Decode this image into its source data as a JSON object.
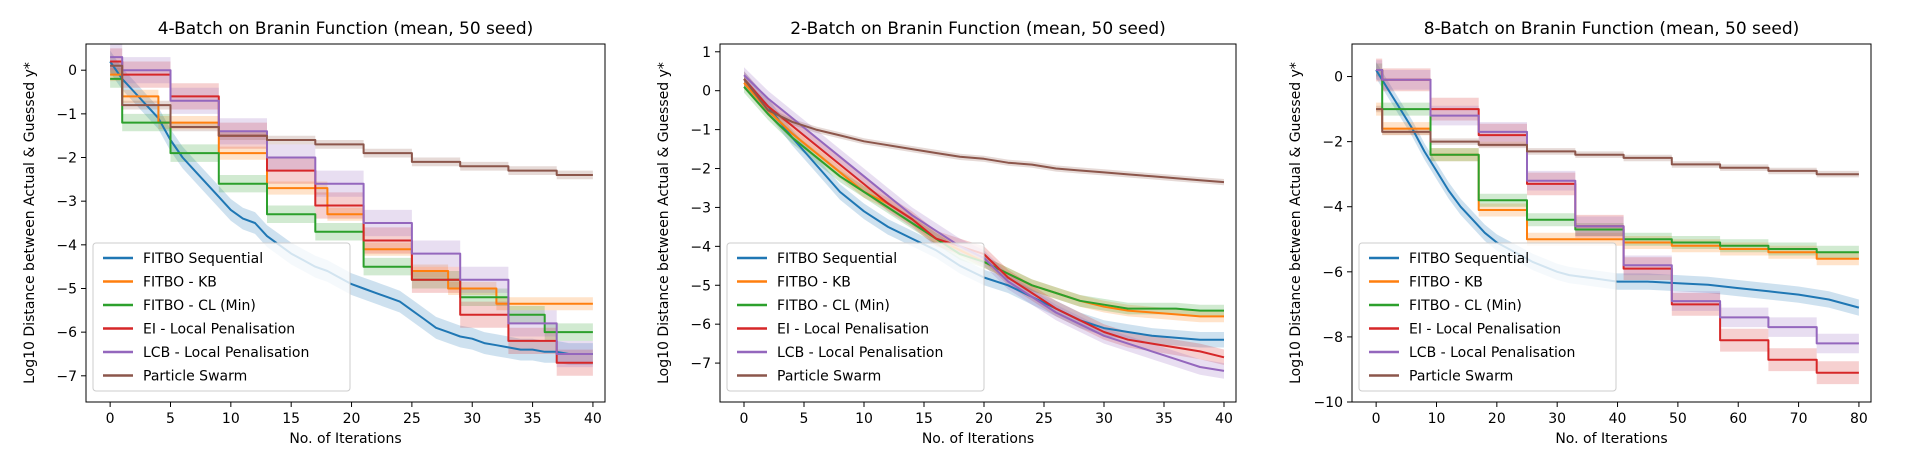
{
  "legend_labels": [
    "FITBO Sequential",
    "FITBO - KB",
    "FITBO - CL (Min)",
    "EI - Local Penalisation",
    "LCB - Local Penalisation",
    "Particle Swarm"
  ],
  "colors": {
    "FITBO Sequential": "#1f77b4",
    "FITBO - KB": "#ff7f0e",
    "FITBO - CL (Min)": "#2ca02c",
    "EI - Local Penalisation": "#d62728",
    "LCB - Local Penalisation": "#9467bd",
    "Particle Swarm": "#8c564b"
  },
  "chart_data": [
    {
      "type": "line",
      "title": "4-Batch on Branin Function (mean, 50 seed)",
      "xlabel": "No. of Iterations",
      "ylabel": "Log10 Distance between Actual & Guessed y*",
      "xlim": [
        -2,
        41
      ],
      "ylim": [
        -7.6,
        0.6
      ],
      "xticks": [
        0,
        5,
        10,
        15,
        20,
        25,
        30,
        35,
        40
      ],
      "yticks": [
        0,
        -1,
        -2,
        -3,
        -4,
        -5,
        -6,
        -7
      ],
      "legend_position": "lower-left",
      "grid": false,
      "series": [
        {
          "name": "FITBO Sequential",
          "step": false,
          "band": 0.25,
          "x": [
            0,
            1,
            2,
            3,
            4,
            5,
            6,
            7,
            8,
            9,
            10,
            11,
            12,
            13,
            14,
            15,
            16,
            17,
            18,
            19,
            20,
            21,
            22,
            23,
            24,
            25,
            26,
            27,
            28,
            29,
            30,
            31,
            32,
            33,
            34,
            35,
            36,
            37,
            38,
            39,
            40
          ],
          "y": [
            0.2,
            -0.2,
            -0.5,
            -0.8,
            -1.1,
            -1.6,
            -2.0,
            -2.3,
            -2.6,
            -2.9,
            -3.2,
            -3.4,
            -3.5,
            -3.8,
            -4.0,
            -4.2,
            -4.35,
            -4.5,
            -4.6,
            -4.75,
            -4.9,
            -5.0,
            -5.1,
            -5.2,
            -5.3,
            -5.5,
            -5.7,
            -5.9,
            -6.0,
            -6.1,
            -6.15,
            -6.25,
            -6.3,
            -6.35,
            -6.4,
            -6.4,
            -6.45,
            -6.45,
            -6.5,
            -6.5,
            -6.5
          ]
        },
        {
          "name": "FITBO - KB",
          "step": true,
          "band": 0.15,
          "x": [
            0,
            1,
            4,
            9,
            13,
            18,
            21,
            25,
            28,
            32,
            40
          ],
          "y": [
            -0.1,
            -0.6,
            -1.2,
            -1.9,
            -2.7,
            -3.3,
            -4.1,
            -4.6,
            -5.0,
            -5.35,
            -5.35
          ]
        },
        {
          "name": "FITBO - CL (Min)",
          "step": true,
          "band": 0.2,
          "x": [
            0,
            1,
            5,
            9,
            13,
            17,
            21,
            25,
            29,
            33,
            36,
            40
          ],
          "y": [
            -0.2,
            -1.2,
            -1.9,
            -2.6,
            -3.3,
            -3.7,
            -4.5,
            -4.8,
            -5.2,
            -5.6,
            -6.0,
            -6.0
          ]
        },
        {
          "name": "EI - Local Penalisation",
          "step": true,
          "band": 0.3,
          "x": [
            0,
            1,
            5,
            9,
            13,
            17,
            21,
            25,
            29,
            33,
            37,
            40
          ],
          "y": [
            0.2,
            -0.1,
            -0.6,
            -1.5,
            -2.3,
            -3.1,
            -3.9,
            -4.8,
            -5.6,
            -6.2,
            -6.7,
            -6.7
          ]
        },
        {
          "name": "LCB - Local Penalisation",
          "step": true,
          "band": 0.3,
          "x": [
            0,
            1,
            5,
            9,
            13,
            17,
            21,
            25,
            29,
            33,
            37,
            40
          ],
          "y": [
            0.3,
            0.0,
            -0.7,
            -1.4,
            -2.0,
            -2.6,
            -3.5,
            -4.2,
            -4.8,
            -5.8,
            -6.5,
            -6.5
          ]
        },
        {
          "name": "Particle Swarm",
          "step": true,
          "band": 0.1,
          "x": [
            0,
            1,
            5,
            9,
            13,
            17,
            21,
            25,
            29,
            33,
            37,
            40
          ],
          "y": [
            0.1,
            -0.8,
            -1.3,
            -1.5,
            -1.6,
            -1.7,
            -1.9,
            -2.1,
            -2.2,
            -2.3,
            -2.4,
            -2.4
          ]
        }
      ]
    },
    {
      "type": "line",
      "title": "2-Batch on Branin Function (mean, 50 seed)",
      "xlabel": "No. of Iterations",
      "ylabel": "Log10 Distance between Actual & Guessed y*",
      "xlim": [
        -2,
        41
      ],
      "ylim": [
        -8.0,
        1.2
      ],
      "xticks": [
        0,
        5,
        10,
        15,
        20,
        25,
        30,
        35,
        40
      ],
      "yticks": [
        1,
        0,
        -1,
        -2,
        -3,
        -4,
        -5,
        -6,
        -7
      ],
      "legend_position": "lower-left",
      "grid": false,
      "series": [
        {
          "name": "FITBO Sequential",
          "step": false,
          "band": 0.2,
          "x": [
            0,
            2,
            4,
            6,
            8,
            10,
            12,
            14,
            16,
            18,
            20,
            22,
            24,
            26,
            28,
            30,
            32,
            34,
            36,
            38,
            40
          ],
          "y": [
            0.3,
            -0.4,
            -1.2,
            -1.9,
            -2.6,
            -3.1,
            -3.5,
            -3.8,
            -4.1,
            -4.5,
            -4.8,
            -5.0,
            -5.3,
            -5.6,
            -5.9,
            -6.1,
            -6.2,
            -6.3,
            -6.35,
            -6.4,
            -6.4
          ]
        },
        {
          "name": "FITBO - KB",
          "step": false,
          "band": 0.15,
          "x": [
            0,
            2,
            4,
            6,
            8,
            10,
            12,
            14,
            16,
            18,
            20,
            22,
            24,
            26,
            28,
            30,
            32,
            34,
            36,
            38,
            40
          ],
          "y": [
            0.2,
            -0.5,
            -1.1,
            -1.6,
            -2.1,
            -2.6,
            -2.9,
            -3.3,
            -3.8,
            -4.1,
            -4.4,
            -4.7,
            -5.0,
            -5.2,
            -5.4,
            -5.55,
            -5.65,
            -5.7,
            -5.75,
            -5.8,
            -5.8
          ]
        },
        {
          "name": "FITBO - CL (Min)",
          "step": false,
          "band": 0.15,
          "x": [
            0,
            2,
            4,
            6,
            8,
            10,
            12,
            14,
            16,
            18,
            20,
            22,
            24,
            26,
            28,
            30,
            32,
            34,
            36,
            38,
            40
          ],
          "y": [
            0.1,
            -0.6,
            -1.2,
            -1.7,
            -2.2,
            -2.6,
            -3.0,
            -3.4,
            -3.8,
            -4.2,
            -4.4,
            -4.7,
            -5.0,
            -5.2,
            -5.4,
            -5.5,
            -5.6,
            -5.6,
            -5.6,
            -5.65,
            -5.65
          ]
        },
        {
          "name": "EI - Local Penalisation",
          "step": false,
          "band": 0.2,
          "x": [
            0,
            2,
            4,
            6,
            8,
            10,
            12,
            14,
            16,
            18,
            20,
            22,
            24,
            26,
            28,
            30,
            32,
            34,
            36,
            38,
            40
          ],
          "y": [
            0.3,
            -0.4,
            -0.9,
            -1.4,
            -1.9,
            -2.4,
            -2.9,
            -3.3,
            -3.8,
            -4.0,
            -4.2,
            -4.8,
            -5.2,
            -5.6,
            -5.9,
            -6.2,
            -6.4,
            -6.5,
            -6.6,
            -6.7,
            -6.85
          ]
        },
        {
          "name": "LCB - Local Penalisation",
          "step": false,
          "band": 0.2,
          "x": [
            0,
            2,
            4,
            6,
            8,
            10,
            12,
            14,
            16,
            18,
            20,
            22,
            24,
            26,
            28,
            30,
            32,
            34,
            36,
            38,
            40
          ],
          "y": [
            0.4,
            -0.2,
            -0.7,
            -1.2,
            -1.7,
            -2.2,
            -2.7,
            -3.2,
            -3.6,
            -4.0,
            -4.3,
            -4.9,
            -5.3,
            -5.7,
            -6.0,
            -6.3,
            -6.5,
            -6.7,
            -6.9,
            -7.1,
            -7.2
          ]
        },
        {
          "name": "Particle Swarm",
          "step": false,
          "band": 0.08,
          "x": [
            0,
            2,
            4,
            6,
            8,
            10,
            12,
            14,
            16,
            18,
            20,
            22,
            24,
            26,
            28,
            30,
            32,
            34,
            36,
            38,
            40
          ],
          "y": [
            0.3,
            -0.5,
            -0.8,
            -1.0,
            -1.15,
            -1.3,
            -1.4,
            -1.5,
            -1.6,
            -1.7,
            -1.75,
            -1.85,
            -1.9,
            -2.0,
            -2.05,
            -2.1,
            -2.15,
            -2.2,
            -2.25,
            -2.3,
            -2.35
          ]
        }
      ]
    },
    {
      "type": "line",
      "title": "8-Batch on Branin Function (mean, 50 seed)",
      "xlabel": "No. of Iterations",
      "ylabel": "Log10 Distance between Actual & Guessed y*",
      "xlim": [
        -4,
        82
      ],
      "ylim": [
        -10.0,
        1.0
      ],
      "xticks": [
        0,
        10,
        20,
        30,
        40,
        50,
        60,
        70,
        80
      ],
      "yticks": [
        0,
        -2,
        -4,
        -6,
        -8,
        -10
      ],
      "legend_position": "lower-left",
      "grid": false,
      "series": [
        {
          "name": "FITBO Sequential",
          "step": false,
          "band": 0.25,
          "x": [
            0,
            2,
            4,
            6,
            8,
            10,
            12,
            14,
            16,
            18,
            20,
            22,
            24,
            26,
            28,
            30,
            32,
            34,
            36,
            38,
            40,
            45,
            50,
            55,
            60,
            65,
            70,
            75,
            80
          ],
          "y": [
            0.2,
            -0.4,
            -1.0,
            -1.6,
            -2.3,
            -2.9,
            -3.5,
            -4.0,
            -4.4,
            -4.8,
            -5.1,
            -5.3,
            -5.5,
            -5.7,
            -5.85,
            -6.0,
            -6.1,
            -6.15,
            -6.2,
            -6.25,
            -6.3,
            -6.3,
            -6.35,
            -6.4,
            -6.5,
            -6.6,
            -6.7,
            -6.85,
            -7.1
          ]
        },
        {
          "name": "FITBO - KB",
          "step": true,
          "band": 0.2,
          "x": [
            0,
            1,
            9,
            17,
            25,
            33,
            41,
            49,
            57,
            65,
            73,
            80
          ],
          "y": [
            -1.0,
            -1.6,
            -2.4,
            -4.1,
            -5.0,
            -5.0,
            -5.1,
            -5.2,
            -5.3,
            -5.4,
            -5.6,
            -5.6
          ]
        },
        {
          "name": "FITBO - CL (Min)",
          "step": true,
          "band": 0.2,
          "x": [
            0,
            1,
            9,
            17,
            25,
            33,
            41,
            49,
            57,
            65,
            73,
            80
          ],
          "y": [
            0.2,
            -1.0,
            -2.4,
            -3.8,
            -4.4,
            -4.7,
            -5.0,
            -5.1,
            -5.2,
            -5.3,
            -5.4,
            -5.4
          ]
        },
        {
          "name": "EI - Local Penalisation",
          "step": true,
          "band": 0.35,
          "x": [
            0,
            1,
            9,
            17,
            25,
            33,
            41,
            49,
            57,
            65,
            73,
            80
          ],
          "y": [
            0.2,
            -0.1,
            -1.0,
            -1.8,
            -3.3,
            -4.6,
            -5.9,
            -7.0,
            -8.1,
            -8.7,
            -9.1,
            -9.1
          ]
        },
        {
          "name": "LCB - Local Penalisation",
          "step": true,
          "band": 0.3,
          "x": [
            0,
            1,
            9,
            17,
            25,
            33,
            41,
            49,
            57,
            65,
            73,
            80
          ],
          "y": [
            0.2,
            -0.1,
            -1.2,
            -1.7,
            -3.2,
            -4.6,
            -5.8,
            -6.9,
            -7.4,
            -7.7,
            -8.2,
            -8.2
          ]
        },
        {
          "name": "Particle Swarm",
          "step": true,
          "band": 0.1,
          "x": [
            0,
            1,
            9,
            17,
            25,
            33,
            41,
            49,
            57,
            65,
            73,
            80
          ],
          "y": [
            -1.0,
            -1.7,
            -2.0,
            -2.1,
            -2.3,
            -2.4,
            -2.5,
            -2.7,
            -2.8,
            -2.9,
            -3.0,
            -3.0
          ]
        }
      ]
    }
  ]
}
